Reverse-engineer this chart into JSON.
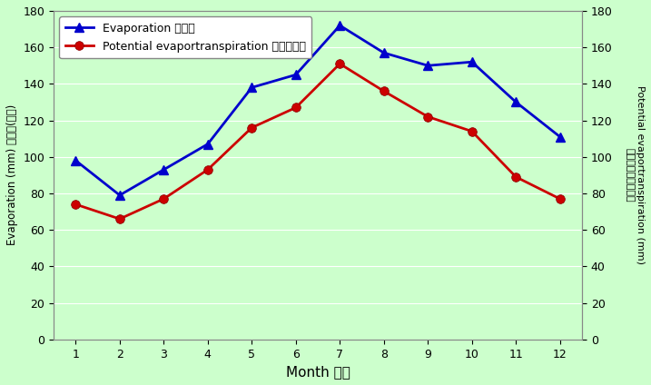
{
  "months": [
    1,
    2,
    3,
    4,
    5,
    6,
    7,
    8,
    9,
    10,
    11,
    12
  ],
  "evaporation": [
    98,
    79,
    93,
    107,
    138,
    145,
    172,
    157,
    150,
    152,
    130,
    111
  ],
  "pet": [
    74,
    66,
    77,
    93,
    116,
    127,
    151,
    136,
    122,
    114,
    89,
    77
  ],
  "evap_color": "#0000CC",
  "pet_color": "#CC0000",
  "bg_color": "#CCFFCC",
  "ylim": [
    0,
    180
  ],
  "yticks": [
    0,
    20,
    40,
    60,
    80,
    100,
    120,
    140,
    160,
    180
  ],
  "xlabel": "Month 月份",
  "ylabel_left_en": "Evaporation (mm) ",
  "ylabel_left_zh": "蔭發量(毫米)",
  "ylabel_right_en": "Potential evaportranspiration (mm)",
  "ylabel_right_zh": "可能蔭散量（毫米）",
  "legend_evap": "Evaporation 蔭發量",
  "legend_pet": "Potential evaportranspiration 可能蔭散量",
  "marker_evap": "^",
  "marker_pet": "o",
  "linewidth": 2,
  "markersize": 7,
  "grid_color": "#aaddaa",
  "figsize": [
    7.17,
    4.24
  ],
  "dpi": 100
}
